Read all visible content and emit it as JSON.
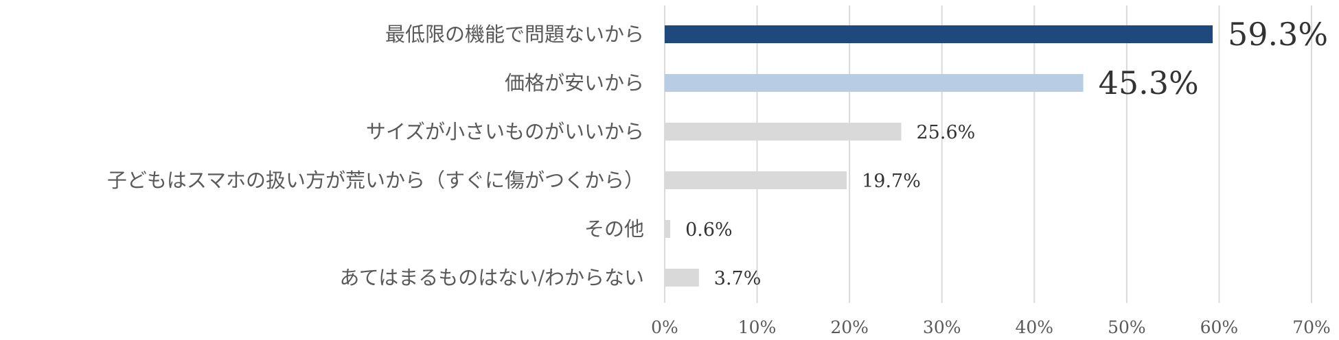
{
  "chart_data": {
    "type": "bar",
    "orientation": "horizontal",
    "categories": [
      "最低限の機能で問題ないから",
      "価格が安いから",
      "サイズが小さいものがいいから",
      "子どもはスマホの扱い方が荒いから（すぐに傷がつくから）",
      "その他",
      "あてはまるものはない/わからない"
    ],
    "values": [
      59.3,
      45.3,
      25.6,
      19.7,
      0.6,
      3.7
    ],
    "data_labels": [
      "59.3%",
      "45.3%",
      "25.6%",
      "19.7%",
      "0.6%",
      "3.7%"
    ],
    "bar_colors": [
      "#1f497d",
      "#b8cce4",
      "#d9d9d9",
      "#d9d9d9",
      "#d9d9d9",
      "#d9d9d9"
    ],
    "highlighted": [
      true,
      true,
      false,
      false,
      false,
      false
    ],
    "xlim": [
      0,
      70
    ],
    "x_ticks": [
      0,
      10,
      20,
      30,
      40,
      50,
      60,
      70
    ],
    "x_tick_labels": [
      "0%",
      "10%",
      "20%",
      "30%",
      "40%",
      "50%",
      "60%",
      "70%"
    ],
    "grid": "vertical",
    "legend": "none",
    "title": "",
    "xlabel": "",
    "ylabel": ""
  }
}
